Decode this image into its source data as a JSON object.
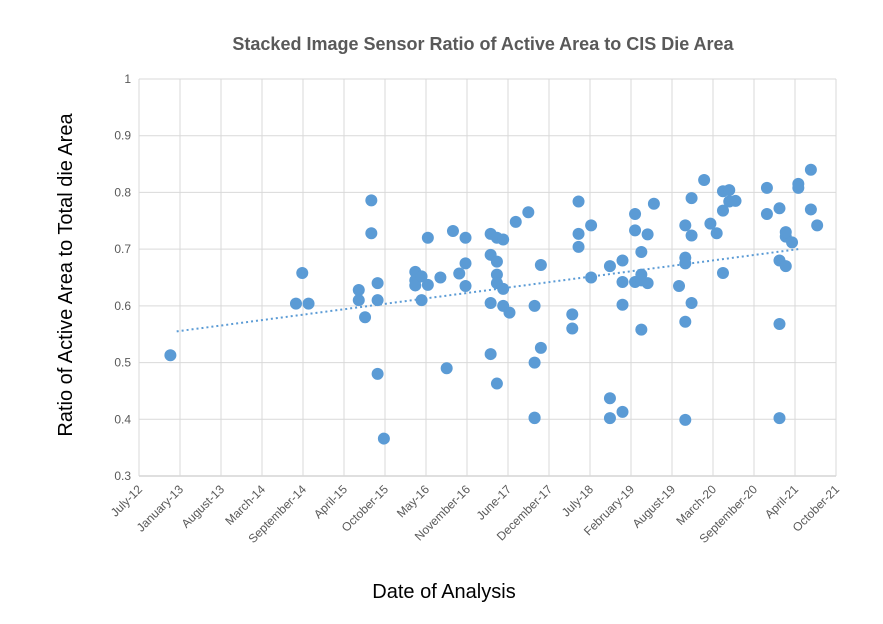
{
  "chart_data": {
    "type": "scatter",
    "title": "Stacked Image Sensor Ratio of Active Area to CIS Die Area",
    "xlabel": "Date of Analysis",
    "ylabel": "Ratio of Active Area to Total die Area",
    "x_tick_labels": [
      "July-12",
      "January-13",
      "August-13",
      "March-14",
      "September-14",
      "April-15",
      "October-15",
      "May-16",
      "November-16",
      "June-17",
      "December-17",
      "July-18",
      "February-19",
      "August-19",
      "March-20",
      "September-20",
      "April-21",
      "October-21"
    ],
    "y_tick_labels": [
      "0.3",
      "0.4",
      "0.5",
      "0.6",
      "0.7",
      "0.8",
      "0.9",
      "1"
    ],
    "xlim": [
      "2012-07",
      "2021-10"
    ],
    "ylim": [
      0.3,
      1.0
    ],
    "grid": "vertical and horizontal",
    "point_color": "#5b9bd5",
    "trendline": {
      "style": "dotted linear",
      "start": [
        "2013-01",
        0.555
      ],
      "end": [
        "2021-04",
        0.7
      ]
    },
    "points": [
      [
        "2012-12",
        0.513
      ],
      [
        "2014-08",
        0.604
      ],
      [
        "2014-09",
        0.658
      ],
      [
        "2014-10",
        0.604
      ],
      [
        "2015-06",
        0.628
      ],
      [
        "2015-06",
        0.61
      ],
      [
        "2015-07",
        0.58
      ],
      [
        "2015-08",
        0.786
      ],
      [
        "2015-08",
        0.728
      ],
      [
        "2015-09",
        0.61
      ],
      [
        "2015-09",
        0.48
      ],
      [
        "2015-09",
        0.64
      ],
      [
        "2015-10",
        0.366
      ],
      [
        "2016-03",
        0.66
      ],
      [
        "2016-03",
        0.645
      ],
      [
        "2016-03",
        0.636
      ],
      [
        "2016-04",
        0.652
      ],
      [
        "2016-04",
        0.61
      ],
      [
        "2016-05",
        0.637
      ],
      [
        "2016-05",
        0.72
      ],
      [
        "2016-07",
        0.65
      ],
      [
        "2016-08",
        0.49
      ],
      [
        "2016-09",
        0.732
      ],
      [
        "2016-10",
        0.657
      ],
      [
        "2016-11",
        0.675
      ],
      [
        "2016-11",
        0.635
      ],
      [
        "2016-11",
        0.72
      ],
      [
        "2017-03",
        0.727
      ],
      [
        "2017-03",
        0.69
      ],
      [
        "2017-03",
        0.605
      ],
      [
        "2017-03",
        0.515
      ],
      [
        "2017-04",
        0.72
      ],
      [
        "2017-04",
        0.678
      ],
      [
        "2017-04",
        0.655
      ],
      [
        "2017-04",
        0.64
      ],
      [
        "2017-04",
        0.463
      ],
      [
        "2017-05",
        0.63
      ],
      [
        "2017-05",
        0.6
      ],
      [
        "2017-05",
        0.717
      ],
      [
        "2017-06",
        0.588
      ],
      [
        "2017-07",
        0.748
      ],
      [
        "2017-09",
        0.765
      ],
      [
        "2017-10",
        0.6
      ],
      [
        "2017-10",
        0.5
      ],
      [
        "2017-10",
        0.403
      ],
      [
        "2017-10",
        0.402
      ],
      [
        "2017-11",
        0.672
      ],
      [
        "2017-11",
        0.526
      ],
      [
        "2018-04",
        0.585
      ],
      [
        "2018-04",
        0.56
      ],
      [
        "2018-05",
        0.784
      ],
      [
        "2018-05",
        0.727
      ],
      [
        "2018-05",
        0.704
      ],
      [
        "2018-07",
        0.742
      ],
      [
        "2018-07",
        0.65
      ],
      [
        "2018-10",
        0.67
      ],
      [
        "2018-10",
        0.437
      ],
      [
        "2018-10",
        0.402
      ],
      [
        "2018-12",
        0.68
      ],
      [
        "2018-12",
        0.642
      ],
      [
        "2018-12",
        0.602
      ],
      [
        "2018-12",
        0.413
      ],
      [
        "2019-02",
        0.762
      ],
      [
        "2019-02",
        0.733
      ],
      [
        "2019-02",
        0.642
      ],
      [
        "2019-03",
        0.695
      ],
      [
        "2019-03",
        0.655
      ],
      [
        "2019-03",
        0.645
      ],
      [
        "2019-03",
        0.558
      ],
      [
        "2019-04",
        0.64
      ],
      [
        "2019-04",
        0.726
      ],
      [
        "2019-05",
        0.78
      ],
      [
        "2019-09",
        0.635
      ],
      [
        "2019-10",
        0.742
      ],
      [
        "2019-10",
        0.685
      ],
      [
        "2019-10",
        0.675
      ],
      [
        "2019-10",
        0.572
      ],
      [
        "2019-10",
        0.399
      ],
      [
        "2019-11",
        0.79
      ],
      [
        "2019-11",
        0.724
      ],
      [
        "2019-11",
        0.605
      ],
      [
        "2020-01",
        0.822
      ],
      [
        "2020-02",
        0.745
      ],
      [
        "2020-03",
        0.728
      ],
      [
        "2020-04",
        0.802
      ],
      [
        "2020-04",
        0.768
      ],
      [
        "2020-04",
        0.658
      ],
      [
        "2020-05",
        0.804
      ],
      [
        "2020-05",
        0.784
      ],
      [
        "2020-06",
        0.785
      ],
      [
        "2020-11",
        0.808
      ],
      [
        "2020-11",
        0.762
      ],
      [
        "2021-01",
        0.772
      ],
      [
        "2021-01",
        0.68
      ],
      [
        "2021-01",
        0.568
      ],
      [
        "2021-01",
        0.402
      ],
      [
        "2021-02",
        0.67
      ],
      [
        "2021-02",
        0.722
      ],
      [
        "2021-02",
        0.73
      ],
      [
        "2021-03",
        0.712
      ],
      [
        "2021-04",
        0.815
      ],
      [
        "2021-04",
        0.808
      ],
      [
        "2021-06",
        0.84
      ],
      [
        "2021-06",
        0.77
      ],
      [
        "2021-07",
        0.742
      ]
    ]
  }
}
